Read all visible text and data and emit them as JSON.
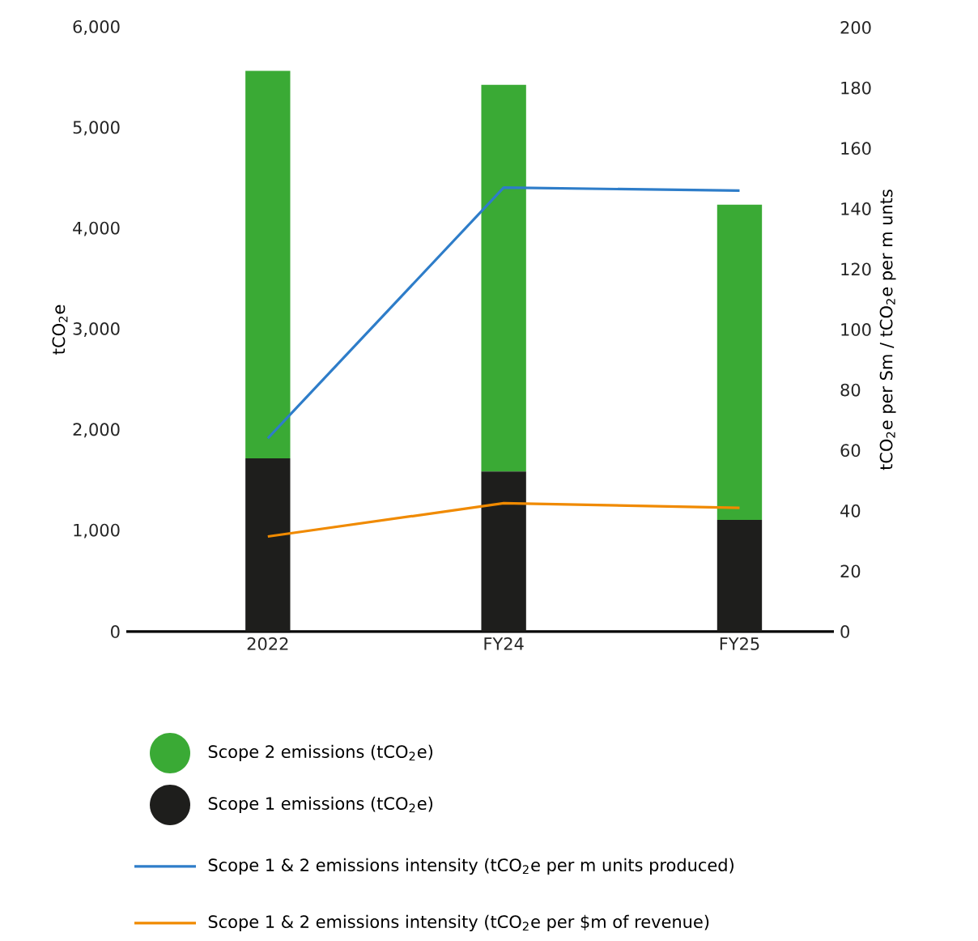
{
  "chart_data": {
    "type": "bar",
    "stacked": true,
    "categories": [
      "2022",
      "FY24",
      "FY25"
    ],
    "ylabel": "tCO$_{2}$e",
    "y2label": "tCO$_{2}$e per Sm / tCO$_{2}$e per m unts",
    "ylim": [
      0,
      6000
    ],
    "yticks": [
      0,
      {
        "value": 1000,
        "label": "1,000"
      },
      {
        "value": 2000,
        "label": "2,000"
      },
      {
        "value": 3000,
        "label": "3,000"
      },
      {
        "value": 4000,
        "label": "4,000"
      },
      {
        "value": 5000,
        "label": "5,000"
      },
      {
        "value": 6000,
        "label": "6,000"
      }
    ],
    "y2lim": [
      0,
      200
    ],
    "y2ticks": [
      0,
      20,
      40,
      60,
      80,
      100,
      120,
      140,
      160,
      180,
      200
    ],
    "legend": "bottom",
    "series": [
      {
        "name": "Scope 1 emissions (tCO$_{2}$e)",
        "color": "#1e1e1c",
        "values": [
          1720,
          1590,
          1110
        ]
      },
      {
        "name": "Scope 2 emissions (tCO$_{2}$e)",
        "color": "#3aaa35",
        "values": [
          3850,
          3840,
          3130
        ]
      },
      {
        "name": "Scope 1 & 2 emissions intensity (tCO$_{2}$e per m units produced)",
        "type": "line",
        "axis": "y2",
        "color": "#2e7dc9",
        "values": [
          64,
          147,
          146
        ]
      },
      {
        "name": "Scope 1 & 2 emissions intensity (tCO$_{2}$e per $m of revenue)",
        "type": "line",
        "axis": "y2",
        "color": "#f08a00",
        "values": [
          31.5,
          42.5,
          41
        ]
      }
    ]
  }
}
